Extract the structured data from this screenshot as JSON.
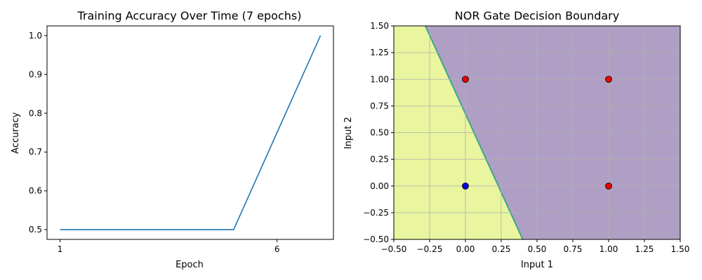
{
  "chart_data": [
    {
      "type": "line",
      "title": "Training Accuracy Over Time (7 epochs)",
      "xlabel": "Epoch",
      "ylabel": "Accuracy",
      "x": [
        1,
        2,
        3,
        4,
        5,
        6,
        7
      ],
      "series": [
        {
          "values": [
            0.5,
            0.5,
            0.5,
            0.5,
            0.5,
            0.75,
            1.0
          ],
          "color": "#1f77b4"
        }
      ],
      "xlim": [
        0.7,
        7.3
      ],
      "ylim": [
        0.475,
        1.025
      ],
      "xticks": [
        1,
        6
      ],
      "yticks": [
        0.5,
        0.6,
        0.7,
        0.8,
        0.9,
        1.0
      ],
      "ytick_labels": [
        "0.5",
        "0.6",
        "0.7",
        "0.8",
        "0.9",
        "1.0"
      ],
      "grid": false
    },
    {
      "type": "scatter",
      "title": "NOR Gate Decision Boundary",
      "xlabel": "Input 1",
      "ylabel": "Input 2",
      "xlim": [
        -0.5,
        1.5
      ],
      "ylim": [
        -0.5,
        1.5
      ],
      "xticks": [
        -0.5,
        -0.25,
        0,
        0.25,
        0.5,
        0.75,
        1.0,
        1.25,
        1.5
      ],
      "yticks": [
        -0.5,
        -0.25,
        0,
        0.25,
        0.5,
        0.75,
        1.0,
        1.25,
        1.5
      ],
      "tick_labels": [
        "−0.50",
        "−0.25",
        "0.00",
        "0.25",
        "0.50",
        "0.75",
        "1.00",
        "1.25",
        "1.50"
      ],
      "grid": true,
      "boundary": {
        "x_at_top": -0.28,
        "x_at_bottom": 0.4
      },
      "regions": {
        "positive_color": "#e9f59f",
        "negative_color": "#b09fc4",
        "edge_color": "#3aa88a"
      },
      "points": [
        {
          "x": 0,
          "y": 0,
          "label": 1,
          "color": "#0000dd"
        },
        {
          "x": 0,
          "y": 1,
          "label": 0,
          "color": "#ee0000"
        },
        {
          "x": 1,
          "y": 0,
          "label": 0,
          "color": "#ee0000"
        },
        {
          "x": 1,
          "y": 1,
          "label": 0,
          "color": "#ee0000"
        }
      ]
    }
  ]
}
